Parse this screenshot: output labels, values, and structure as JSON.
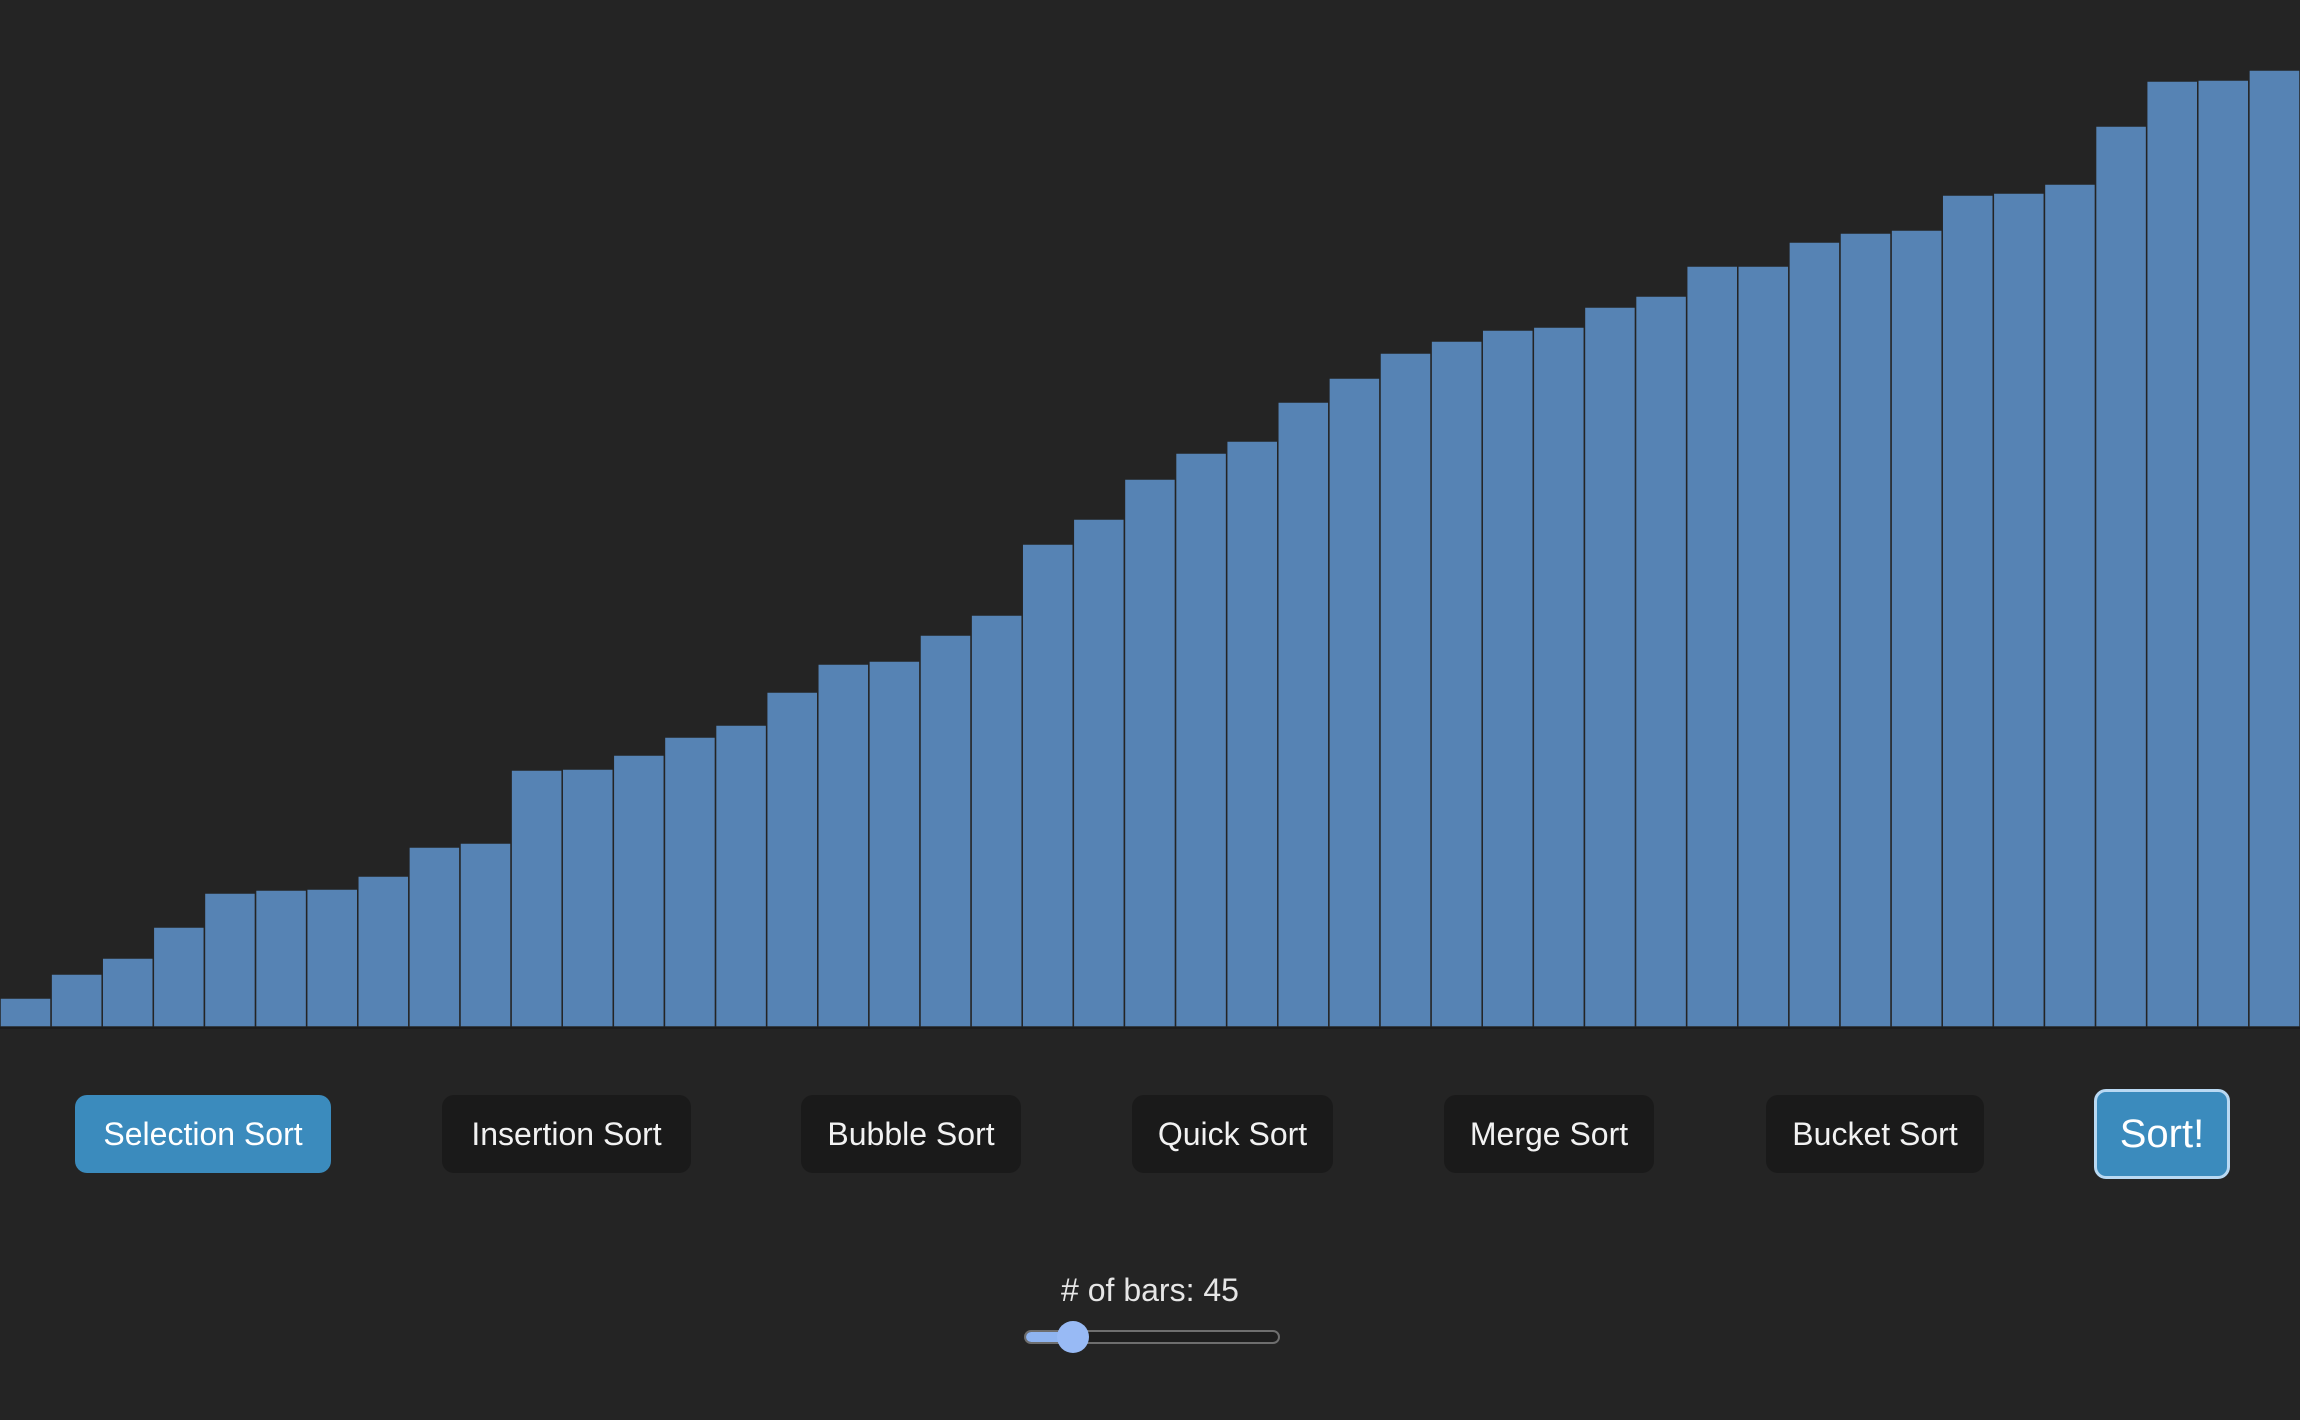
{
  "chart_data": {
    "type": "bar",
    "values": [
      29,
      53,
      69,
      100,
      134,
      137,
      138,
      151,
      180,
      184,
      257,
      258,
      272,
      290,
      302,
      335,
      363,
      366,
      392,
      412,
      483,
      508,
      548,
      574,
      586,
      625,
      649,
      674,
      686,
      697,
      700,
      720,
      731,
      761,
      761,
      785,
      794,
      797,
      832,
      834,
      843,
      901,
      946,
      947,
      957
    ],
    "ylim": [
      0,
      1027
    ],
    "bar_color": "#5683b4",
    "bar_edge_color": "#242424",
    "background": "#242424"
  },
  "controls": {
    "algorithms": [
      {
        "label": "Selection Sort",
        "active": true
      },
      {
        "label": "Insertion Sort",
        "active": false
      },
      {
        "label": "Bubble Sort",
        "active": false
      },
      {
        "label": "Quick Sort",
        "active": false
      },
      {
        "label": "Merge Sort",
        "active": false
      },
      {
        "label": "Bucket Sort",
        "active": false
      }
    ],
    "sort_label": "Sort!",
    "bar_count_label": "# of bars: 45",
    "slider": {
      "value": 45,
      "fraction": 0.19
    }
  },
  "colors": {
    "accent": "#3b8bbd",
    "button_bg": "#1a1a1a",
    "slider_thumb": "#98baf5"
  }
}
